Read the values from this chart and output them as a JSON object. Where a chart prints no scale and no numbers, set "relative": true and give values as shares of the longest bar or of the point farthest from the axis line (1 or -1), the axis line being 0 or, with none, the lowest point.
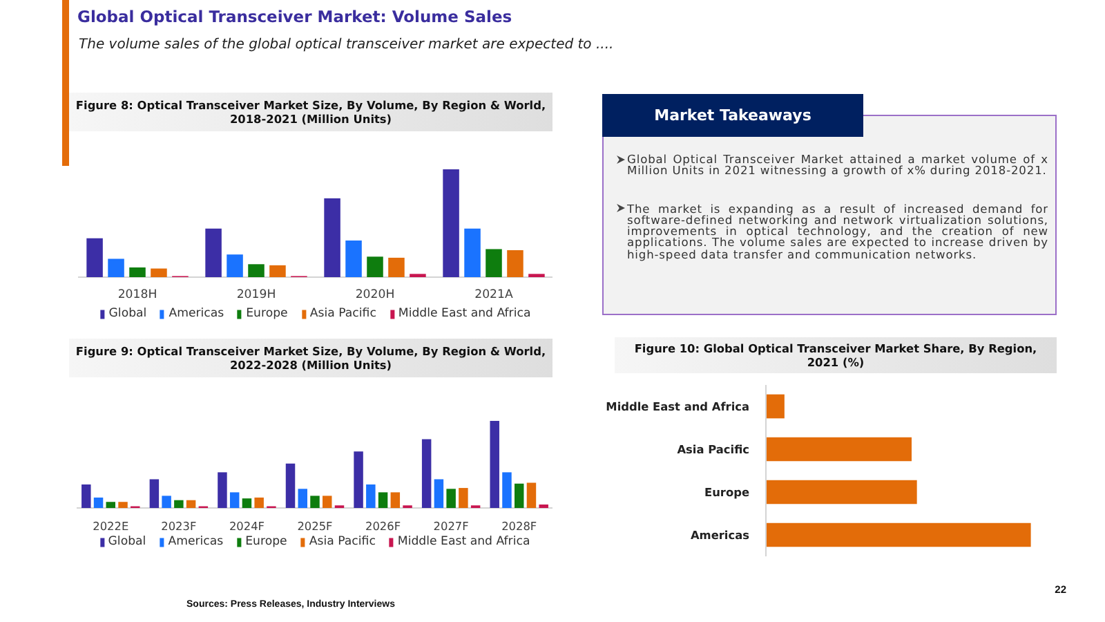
{
  "chart_data": [
    {
      "type": "other",
      "title": "Global Optical Transceiver Market: Volume Sales",
      "subtitle": "The volume sales of the global optical transceiver market are expected to ...."
    },
    {
      "type": "bar",
      "title": "Figure 8: Optical Transceiver Market Size, By Volume, By Region & World, 2018-2021 (Million Units)",
      "categories": [
        "2018H",
        "2019H",
        "2020H",
        "2021A"
      ],
      "relative": true,
      "legend": "bottom",
      "series": [
        {
          "name": "Global",
          "color": "#3c2ea6",
          "values": [
            0.36,
            0.45,
            0.73,
            1
          ]
        },
        {
          "name": "Americas",
          "color": "#1a73ff",
          "values": [
            0.17,
            0.21,
            0.34,
            0.45
          ]
        },
        {
          "name": "Europe",
          "color": "#0e7d0e",
          "values": [
            0.09,
            0.12,
            0.19,
            0.26
          ]
        },
        {
          "name": "Asia Pacific",
          "color": "#e36c09",
          "values": [
            0.08,
            0.11,
            0.18,
            0.25
          ]
        },
        {
          "name": "Middle East and Africa",
          "color": "#c81650",
          "values": [
            0.01,
            0.01,
            0.03,
            0.03
          ]
        }
      ]
    },
    {
      "type": "other",
      "title": "Market Takeaways",
      "annotations": [
        "Global Optical Transceiver Market attained a market volume of x Million Units in 2021 witnessing a growth of x% during 2018-2021.",
        "The market is expanding as a result of increased demand for software-defined networking and network virtualization solutions, improvements in optical technology, and the creation of new applications. The volume sales are expected to increase driven by high-speed data transfer and communication networks."
      ]
    },
    {
      "type": "bar",
      "title": "Figure 9: Optical Transceiver Market Size, By Volume, By Region & World, 2022-2028 (Million Units)",
      "categories": [
        "2022E",
        "2023F",
        "2024F",
        "2025F",
        "2026F",
        "2027F",
        "2028F"
      ],
      "relative": true,
      "legend": "bottom",
      "series": [
        {
          "name": "Global",
          "color": "#3c2ea6",
          "values": [
            0.27,
            0.33,
            0.41,
            0.51,
            0.65,
            0.79,
            1
          ]
        },
        {
          "name": "Americas",
          "color": "#1a73ff",
          "values": [
            0.12,
            0.14,
            0.18,
            0.22,
            0.27,
            0.33,
            0.41
          ]
        },
        {
          "name": "Europe",
          "color": "#0e7d0e",
          "values": [
            0.07,
            0.09,
            0.11,
            0.14,
            0.18,
            0.22,
            0.28
          ]
        },
        {
          "name": "Asia Pacific",
          "color": "#e36c09",
          "values": [
            0.07,
            0.09,
            0.12,
            0.14,
            0.18,
            0.23,
            0.29
          ]
        },
        {
          "name": "Middle East and Africa",
          "color": "#c81650",
          "values": [
            0.02,
            0.02,
            0.02,
            0.03,
            0.03,
            0.03,
            0.04
          ]
        }
      ]
    },
    {
      "type": "bar",
      "orientation": "horizontal",
      "title": "Figure 10: Global Optical Transceiver Market Share, By Region, 2021 (%)",
      "categories": [
        "Middle East and Africa",
        "Asia Pacific",
        "Europe",
        "Americas"
      ],
      "relative": true,
      "values": [
        0.07,
        0.55,
        0.57,
        1
      ],
      "color": "#e36c09"
    },
    {
      "type": "other",
      "annotations": [
        "Sources: Press Releases, Industry Interviews",
        "22"
      ]
    }
  ]
}
